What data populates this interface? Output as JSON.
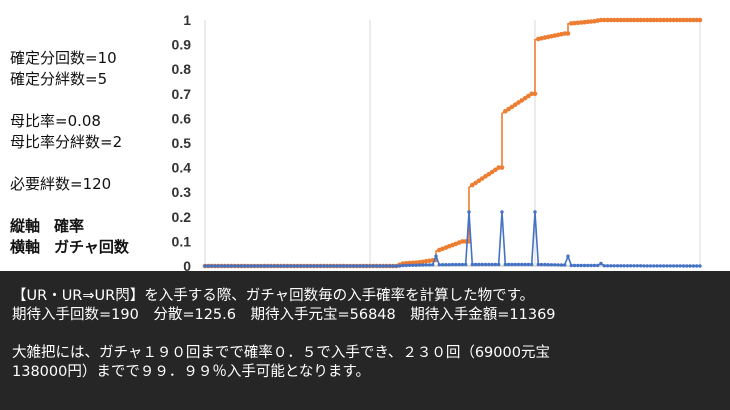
{
  "params": {
    "line1": "確定分回数=10",
    "line2": "確定分絆数=5",
    "line3": "母比率=0.08",
    "line4": "母比率分絆数=2",
    "line5": "必要絆数=120",
    "axis_y_key": "縦軸",
    "axis_y_val": "確率",
    "axis_x_key": "横軸",
    "axis_x_val": "ガチャ回数"
  },
  "description": {
    "line1": "【UR・UR⇒UR閃】を入手する際、ガチャ回数毎の入手確率を計算した物です。",
    "line2": "期待入手回数=190　分散=125.6　期待入手元宝=56848　期待入手金額=11369",
    "line3": "大雑把には、ガチャ１９０回までで確率０．５で入手でき、２３０回（69000元宝",
    "line4": "138000円）までで９９．９９％入手可能となります。"
  },
  "colors": {
    "cumulative": "#ED7D31",
    "per_pull": "#4472C4",
    "grid": "#d9d9d9",
    "axis": "#bfbfbf"
  },
  "chart_data": {
    "type": "line",
    "xlim": [
      100,
      250
    ],
    "ylim": [
      0,
      1
    ],
    "xticks": [
      "100",
      "150",
      "200",
      "250"
    ],
    "yticks": [
      "0",
      "0.1",
      "0.2",
      "0.3",
      "0.4",
      "0.5",
      "0.6",
      "0.7",
      "0.8",
      "0.9",
      "1"
    ],
    "grid": "vertical",
    "series": [
      {
        "color": "#ED7D31",
        "points": [
          [
            100,
            0
          ],
          [
            158,
            0
          ],
          [
            160,
            0.01
          ],
          [
            165,
            0.015
          ],
          [
            170,
            0.025
          ],
          [
            170,
            0.06
          ],
          [
            178,
            0.1
          ],
          [
            180,
            0.1
          ],
          [
            180,
            0.32
          ],
          [
            189,
            0.4
          ],
          [
            190,
            0.4
          ],
          [
            190,
            0.62
          ],
          [
            199,
            0.7
          ],
          [
            200,
            0.7
          ],
          [
            200,
            0.92
          ],
          [
            209,
            0.945
          ],
          [
            210,
            0.945
          ],
          [
            210,
            0.985
          ],
          [
            218,
            0.995
          ],
          [
            220,
            1
          ],
          [
            250,
            1
          ]
        ]
      },
      {
        "color": "#4472C4",
        "points": [
          [
            100,
            0
          ],
          [
            159,
            0
          ],
          [
            160,
            0.002
          ],
          [
            169,
            0.005
          ],
          [
            170,
            0.04
          ],
          [
            171,
            0.005
          ],
          [
            179,
            0.006
          ],
          [
            180,
            0.22
          ],
          [
            181,
            0.006
          ],
          [
            189,
            0.006
          ],
          [
            190,
            0.22
          ],
          [
            191,
            0.006
          ],
          [
            199,
            0.006
          ],
          [
            200,
            0.22
          ],
          [
            201,
            0.006
          ],
          [
            209,
            0.004
          ],
          [
            210,
            0.04
          ],
          [
            211,
            0.002
          ],
          [
            219,
            0.002
          ],
          [
            220,
            0.01
          ],
          [
            221,
            0.001
          ],
          [
            250,
            0
          ]
        ]
      }
    ]
  }
}
